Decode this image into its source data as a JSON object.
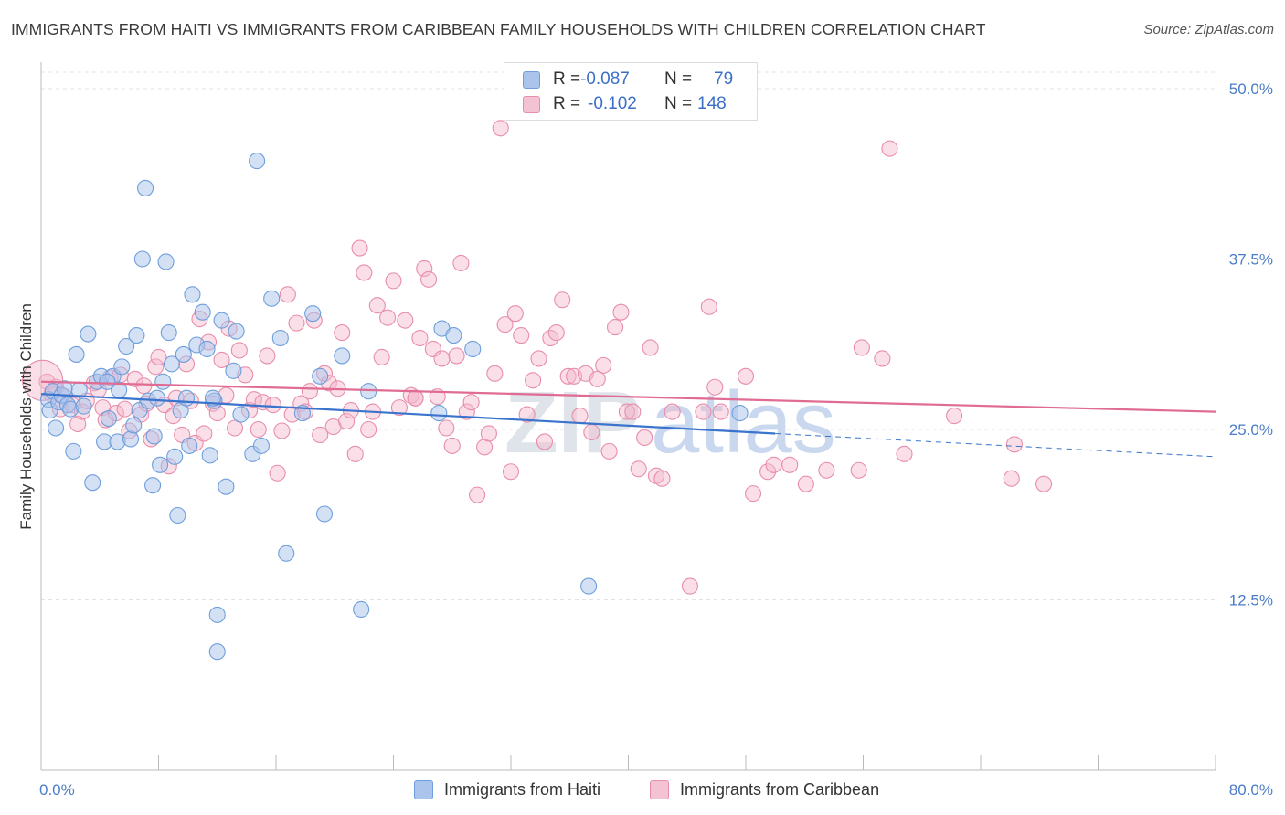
{
  "header": {
    "title": "IMMIGRANTS FROM HAITI VS IMMIGRANTS FROM CARIBBEAN FAMILY HOUSEHOLDS WITH CHILDREN CORRELATION CHART",
    "source": "Source: ZipAtlas.com"
  },
  "colors": {
    "haiti_fill": "#aac4ec",
    "haiti_stroke": "#6e9fdc",
    "haiti_line": "#3a74cc",
    "caribbean_fill": "#f4b8cb",
    "caribbean_stroke": "#e88eaa",
    "caribbean_line": "#e06c93",
    "grid": "#e3e3e3",
    "tick_label": "#4a7cc7"
  },
  "legend": {
    "haiti": {
      "r_label": "R =",
      "r_value": "-0.087",
      "n_label": "N =",
      "n_value": "79"
    },
    "caribbean": {
      "r_label": "R =",
      "r_value": "-0.102",
      "n_label": "N =",
      "n_value": "148"
    }
  },
  "bottom_legend": {
    "haiti": "Immigrants from Haiti",
    "caribbean": "Immigrants from Caribbean"
  },
  "watermark": {
    "zip": "ZIP",
    "atlas": "atlas"
  },
  "chart_data": {
    "type": "scatter",
    "title": "IMMIGRANTS FROM HAITI VS IMMIGRANTS FROM CARIBBEAN FAMILY HOUSEHOLDS WITH CHILDREN CORRELATION CHART",
    "xlabel": "",
    "ylabel": "Family Households with Children",
    "xlim": [
      0,
      80
    ],
    "ylim": [
      0,
      50
    ],
    "x_tick_labels": [
      "0.0%",
      "80.0%"
    ],
    "y_ticks": [
      12.5,
      25.0,
      37.5,
      50.0
    ],
    "y_tick_labels": [
      "12.5%",
      "25.0%",
      "37.5%",
      "50.0%"
    ],
    "grid": "horizontal dashed",
    "legend_position": "top-center",
    "series": [
      {
        "name": "Immigrants from Haiti",
        "R": -0.087,
        "N": 79,
        "trend": {
          "x": [
            0,
            50
          ],
          "y": [
            27.6,
            24.7
          ],
          "dashed_extension_to_x": 80,
          "dashed_end_y": 23.0
        },
        "points": [
          [
            0.5,
            27.2
          ],
          [
            0.6,
            26.4
          ],
          [
            0.8,
            27.8
          ],
          [
            1.0,
            25.1
          ],
          [
            1.2,
            27.0
          ],
          [
            1.4,
            27.5
          ],
          [
            1.6,
            28.0
          ],
          [
            1.8,
            26.8
          ],
          [
            2.0,
            26.5
          ],
          [
            2.2,
            23.4
          ],
          [
            2.4,
            30.5
          ],
          [
            2.6,
            27.9
          ],
          [
            2.9,
            26.7
          ],
          [
            3.2,
            32.0
          ],
          [
            3.5,
            21.1
          ],
          [
            3.8,
            28.5
          ],
          [
            4.1,
            28.9
          ],
          [
            4.3,
            24.1
          ],
          [
            4.6,
            25.8
          ],
          [
            4.9,
            28.9
          ],
          [
            5.2,
            24.1
          ],
          [
            5.3,
            27.9
          ],
          [
            5.5,
            29.6
          ],
          [
            5.8,
            31.1
          ],
          [
            6.1,
            24.3
          ],
          [
            6.3,
            25.3
          ],
          [
            6.5,
            31.9
          ],
          [
            6.7,
            26.4
          ],
          [
            6.9,
            37.5
          ],
          [
            7.1,
            42.7
          ],
          [
            7.3,
            27.1
          ],
          [
            7.6,
            20.9
          ],
          [
            7.7,
            24.5
          ],
          [
            7.9,
            27.3
          ],
          [
            8.1,
            22.4
          ],
          [
            8.3,
            28.5
          ],
          [
            8.5,
            37.3
          ],
          [
            8.7,
            32.1
          ],
          [
            8.9,
            29.8
          ],
          [
            9.1,
            23.0
          ],
          [
            9.3,
            18.7
          ],
          [
            9.5,
            26.4
          ],
          [
            9.7,
            30.5
          ],
          [
            9.9,
            27.3
          ],
          [
            10.1,
            23.8
          ],
          [
            10.3,
            34.9
          ],
          [
            10.6,
            31.2
          ],
          [
            11.0,
            33.6
          ],
          [
            11.3,
            30.9
          ],
          [
            11.5,
            23.1
          ],
          [
            11.8,
            27.1
          ],
          [
            12.0,
            11.4
          ],
          [
            12.3,
            33.0
          ],
          [
            12.6,
            20.8
          ],
          [
            13.1,
            29.3
          ],
          [
            13.3,
            32.2
          ],
          [
            13.6,
            26.1
          ],
          [
            14.4,
            23.2
          ],
          [
            14.7,
            44.7
          ],
          [
            15.0,
            23.8
          ],
          [
            15.7,
            34.6
          ],
          [
            16.3,
            31.7
          ],
          [
            16.7,
            15.9
          ],
          [
            17.8,
            26.2
          ],
          [
            18.5,
            33.5
          ],
          [
            19.0,
            28.9
          ],
          [
            19.3,
            18.8
          ],
          [
            20.5,
            30.4
          ],
          [
            21.8,
            11.8
          ],
          [
            22.3,
            27.8
          ],
          [
            27.1,
            26.2
          ],
          [
            27.3,
            32.4
          ],
          [
            28.1,
            31.9
          ],
          [
            29.4,
            30.9
          ],
          [
            37.3,
            13.5
          ],
          [
            47.6,
            26.2
          ],
          [
            12.0,
            8.7
          ],
          [
            11.7,
            27.3
          ],
          [
            4.5,
            28.5
          ]
        ]
      },
      {
        "name": "Immigrants from Caribbean",
        "R": -0.102,
        "N": 148,
        "trend": {
          "x": [
            0,
            80
          ],
          "y": [
            28.5,
            26.3
          ]
        },
        "points": [
          [
            0.4,
            28.5
          ],
          [
            0.7,
            27.6
          ],
          [
            1.0,
            28.1
          ],
          [
            1.3,
            26.5
          ],
          [
            1.6,
            27.4
          ],
          [
            2.1,
            26.8
          ],
          [
            2.5,
            25.4
          ],
          [
            2.8,
            26.3
          ],
          [
            3.1,
            27.1
          ],
          [
            3.6,
            28.4
          ],
          [
            3.9,
            27.9
          ],
          [
            4.2,
            26.6
          ],
          [
            4.4,
            25.7
          ],
          [
            4.7,
            28.8
          ],
          [
            5.1,
            26.2
          ],
          [
            5.4,
            29.0
          ],
          [
            5.7,
            26.5
          ],
          [
            6.0,
            24.9
          ],
          [
            6.4,
            28.7
          ],
          [
            6.8,
            26.1
          ],
          [
            7.0,
            28.2
          ],
          [
            7.2,
            26.9
          ],
          [
            7.5,
            24.3
          ],
          [
            7.8,
            29.6
          ],
          [
            8.0,
            30.3
          ],
          [
            8.4,
            26.8
          ],
          [
            8.7,
            22.3
          ],
          [
            9.0,
            26.0
          ],
          [
            9.2,
            27.3
          ],
          [
            9.6,
            24.6
          ],
          [
            9.9,
            29.8
          ],
          [
            10.2,
            27.1
          ],
          [
            10.5,
            24.0
          ],
          [
            10.8,
            33.1
          ],
          [
            11.1,
            24.7
          ],
          [
            11.4,
            31.4
          ],
          [
            11.7,
            26.9
          ],
          [
            12.0,
            26.2
          ],
          [
            12.3,
            30.1
          ],
          [
            12.6,
            27.5
          ],
          [
            12.8,
            32.4
          ],
          [
            13.2,
            25.1
          ],
          [
            13.5,
            30.8
          ],
          [
            13.9,
            29.0
          ],
          [
            14.2,
            26.4
          ],
          [
            14.5,
            27.2
          ],
          [
            14.8,
            25.0
          ],
          [
            15.1,
            27.0
          ],
          [
            15.4,
            30.4
          ],
          [
            15.8,
            26.8
          ],
          [
            16.1,
            21.8
          ],
          [
            16.4,
            24.9
          ],
          [
            16.8,
            34.9
          ],
          [
            17.1,
            26.1
          ],
          [
            17.4,
            32.8
          ],
          [
            17.7,
            26.9
          ],
          [
            18.0,
            26.3
          ],
          [
            18.3,
            27.8
          ],
          [
            18.6,
            33.0
          ],
          [
            19.0,
            24.6
          ],
          [
            19.3,
            29.1
          ],
          [
            19.6,
            28.4
          ],
          [
            19.9,
            25.2
          ],
          [
            20.2,
            28.0
          ],
          [
            20.5,
            32.1
          ],
          [
            20.8,
            25.6
          ],
          [
            21.1,
            26.4
          ],
          [
            21.4,
            23.2
          ],
          [
            21.7,
            38.3
          ],
          [
            22.0,
            36.5
          ],
          [
            22.3,
            25.0
          ],
          [
            22.6,
            26.3
          ],
          [
            22.9,
            34.1
          ],
          [
            23.2,
            30.3
          ],
          [
            23.6,
            33.2
          ],
          [
            24.0,
            35.9
          ],
          [
            24.4,
            26.6
          ],
          [
            24.8,
            33.0
          ],
          [
            25.2,
            27.5
          ],
          [
            25.5,
            27.3
          ],
          [
            25.8,
            31.7
          ],
          [
            26.1,
            36.8
          ],
          [
            26.4,
            36.0
          ],
          [
            26.7,
            30.9
          ],
          [
            27.0,
            27.4
          ],
          [
            27.3,
            30.2
          ],
          [
            27.6,
            25.1
          ],
          [
            28.0,
            23.8
          ],
          [
            28.3,
            30.4
          ],
          [
            28.6,
            37.2
          ],
          [
            29.0,
            26.3
          ],
          [
            29.3,
            27.0
          ],
          [
            29.7,
            20.2
          ],
          [
            30.2,
            23.7
          ],
          [
            30.5,
            24.7
          ],
          [
            30.9,
            29.1
          ],
          [
            31.3,
            47.1
          ],
          [
            31.6,
            32.7
          ],
          [
            32.0,
            21.9
          ],
          [
            32.3,
            33.5
          ],
          [
            32.7,
            31.9
          ],
          [
            33.1,
            26.1
          ],
          [
            33.5,
            28.6
          ],
          [
            33.9,
            30.2
          ],
          [
            34.3,
            24.1
          ],
          [
            34.7,
            31.7
          ],
          [
            35.1,
            32.1
          ],
          [
            35.5,
            34.5
          ],
          [
            35.9,
            28.9
          ],
          [
            36.3,
            28.9
          ],
          [
            36.7,
            26.0
          ],
          [
            37.1,
            29.1
          ],
          [
            37.5,
            24.8
          ],
          [
            37.9,
            28.7
          ],
          [
            38.3,
            29.7
          ],
          [
            38.7,
            23.4
          ],
          [
            39.1,
            32.5
          ],
          [
            39.5,
            33.6
          ],
          [
            39.9,
            26.3
          ],
          [
            40.3,
            26.3
          ],
          [
            40.7,
            22.1
          ],
          [
            41.1,
            24.4
          ],
          [
            41.5,
            31.0
          ],
          [
            41.9,
            21.6
          ],
          [
            42.3,
            21.4
          ],
          [
            43.0,
            26.3
          ],
          [
            44.2,
            13.5
          ],
          [
            45.1,
            26.3
          ],
          [
            45.5,
            34.0
          ],
          [
            45.9,
            28.1
          ],
          [
            46.3,
            26.3
          ],
          [
            48.0,
            28.9
          ],
          [
            48.5,
            20.3
          ],
          [
            49.5,
            21.9
          ],
          [
            49.9,
            22.4
          ],
          [
            51.0,
            22.4
          ],
          [
            52.1,
            21.0
          ],
          [
            53.5,
            22.0
          ],
          [
            55.7,
            22.0
          ],
          [
            55.9,
            31.0
          ],
          [
            57.3,
            30.2
          ],
          [
            57.8,
            45.6
          ],
          [
            58.8,
            23.2
          ],
          [
            62.2,
            26.0
          ],
          [
            66.1,
            21.4
          ],
          [
            66.3,
            23.9
          ],
          [
            68.3,
            21.0
          ],
          [
            25.5,
            27.3
          ]
        ]
      }
    ]
  }
}
